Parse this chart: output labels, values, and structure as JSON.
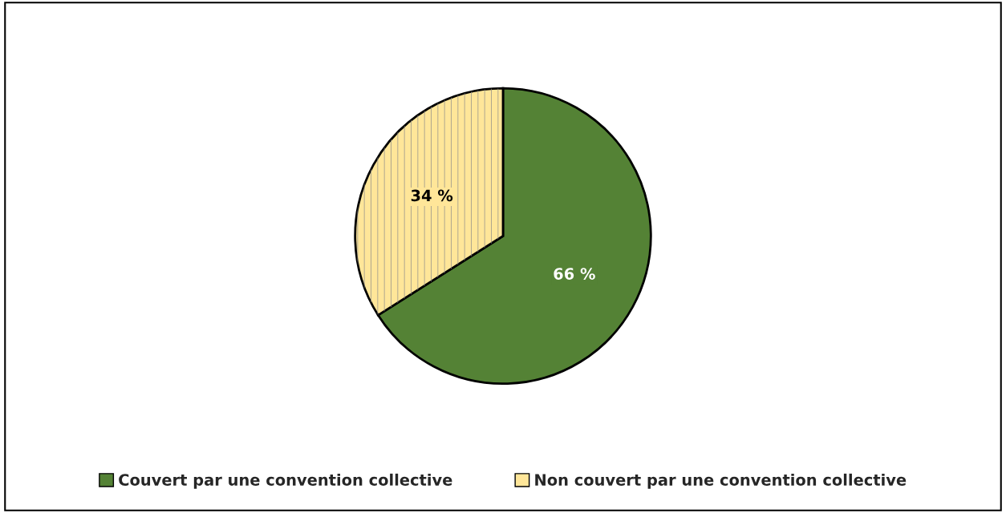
{
  "chart_data": {
    "type": "pie",
    "categories": [
      "Couvert par une convention collective",
      "Non couvert par une convention collective"
    ],
    "values": [
      66,
      34
    ],
    "colors": [
      "#548235",
      "#ffe699"
    ],
    "value_labels": [
      "66 %",
      "34 %"
    ],
    "legend": "bottom"
  }
}
